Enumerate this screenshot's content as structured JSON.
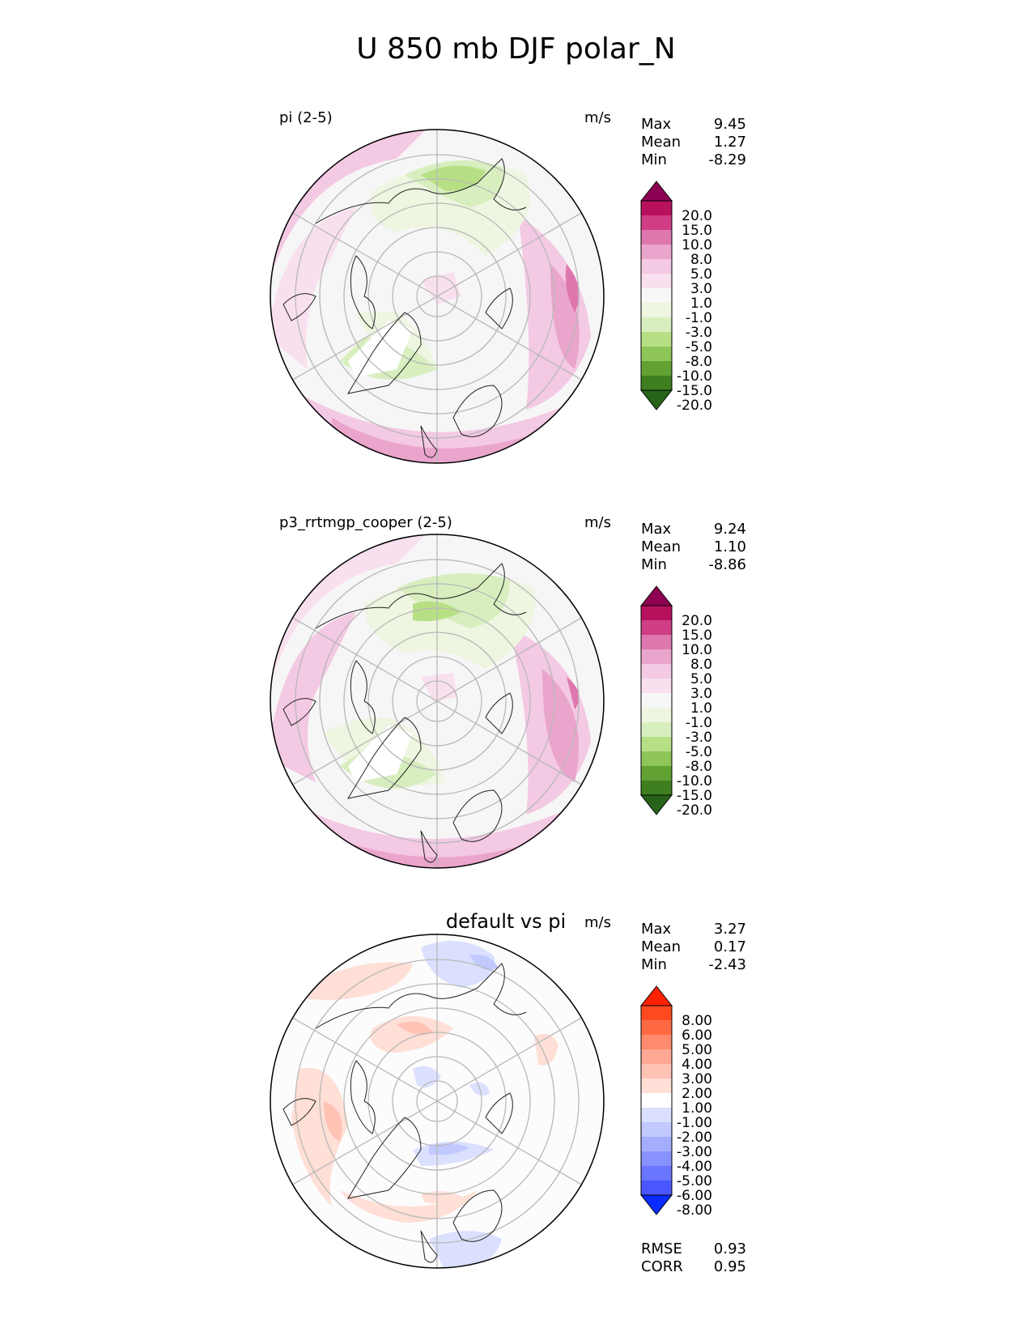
{
  "figure": {
    "title": "U 850 mb DJF polar_N"
  },
  "panels": [
    {
      "id": "test",
      "title": "pi (2-5)",
      "units": "m/s",
      "stats": [
        {
          "label": "Max",
          "value": "9.45"
        },
        {
          "label": "Mean",
          "value": "1.27"
        },
        {
          "label": "Min",
          "value": "-8.29"
        }
      ],
      "colorbar": {
        "ticks": [
          "20.0",
          "15.0",
          "10.0",
          "8.0",
          "5.0",
          "3.0",
          "1.0",
          "-1.0",
          "-3.0",
          "-5.0",
          "-8.0",
          "-10.0",
          "-15.0",
          "-20.0"
        ],
        "colors": [
          "#8e0152",
          "#b7115e",
          "#d03d87",
          "#de77ae",
          "#eaa5cc",
          "#f4c9e3",
          "#f9e0ee",
          "#f7f7f7",
          "#eef5e0",
          "#d8eebf",
          "#b7e085",
          "#8fc65a",
          "#62a233",
          "#3f7f1f",
          "#276419"
        ]
      }
    },
    {
      "id": "ref",
      "title": "p3_rrtmgp_cooper (2-5)",
      "units": "m/s",
      "stats": [
        {
          "label": "Max",
          "value": "9.24"
        },
        {
          "label": "Mean",
          "value": "1.10"
        },
        {
          "label": "Min",
          "value": "-8.86"
        }
      ],
      "colorbar": {
        "ticks": [
          "20.0",
          "15.0",
          "10.0",
          "8.0",
          "5.0",
          "3.0",
          "1.0",
          "-1.0",
          "-3.0",
          "-5.0",
          "-8.0",
          "-10.0",
          "-15.0",
          "-20.0"
        ],
        "colors": [
          "#8e0152",
          "#b7115e",
          "#d03d87",
          "#de77ae",
          "#eaa5cc",
          "#f4c9e3",
          "#f9e0ee",
          "#f7f7f7",
          "#eef5e0",
          "#d8eebf",
          "#b7e085",
          "#8fc65a",
          "#62a233",
          "#3f7f1f",
          "#276419"
        ]
      }
    },
    {
      "id": "diff",
      "title": "default vs pi",
      "units": "m/s",
      "stats": [
        {
          "label": "Max",
          "value": "3.27"
        },
        {
          "label": "Mean",
          "value": "0.17"
        },
        {
          "label": "Min",
          "value": "-2.43"
        }
      ],
      "extra_stats": [
        {
          "label": "RMSE",
          "value": "0.93"
        },
        {
          "label": "CORR",
          "value": "0.95"
        }
      ],
      "colorbar": {
        "ticks": [
          "8.00",
          "6.00",
          "5.00",
          "4.00",
          "3.00",
          "2.00",
          "1.00",
          "-1.00",
          "-2.00",
          "-3.00",
          "-4.00",
          "-5.00",
          "-6.00",
          "-8.00"
        ],
        "colors": [
          "#ff2200",
          "#ff4a20",
          "#ff6a45",
          "#ff8a6d",
          "#ffa895",
          "#ffc3b6",
          "#ffdfd6",
          "#ffffff",
          "#dbe0ff",
          "#c1c9ff",
          "#a4aeff",
          "#8792ff",
          "#6a76ff",
          "#4a56ff",
          "#0a2bff"
        ]
      }
    }
  ]
}
